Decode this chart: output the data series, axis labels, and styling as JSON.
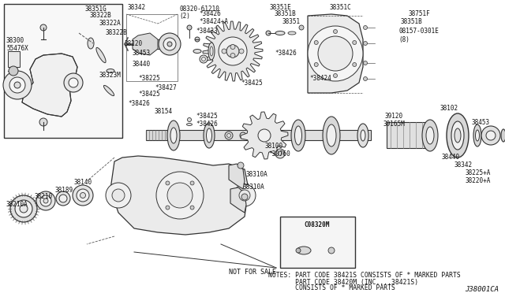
{
  "bg_color": "#ffffff",
  "diagram_ref": "J38001CA",
  "notes_line1": "NOTES: PART CODE 38421S CONSISTS OF * MARKED PARTS",
  "notes_line2": "       PART CODE 38420M (INC....38421S)",
  "notes_line3": "       CONSISTS OF * MARKED PARTS",
  "line_color": "#333333",
  "text_color": "#111111",
  "font_size": 5.5,
  "note_font_size": 5.8,
  "ref_font_size": 6.5
}
